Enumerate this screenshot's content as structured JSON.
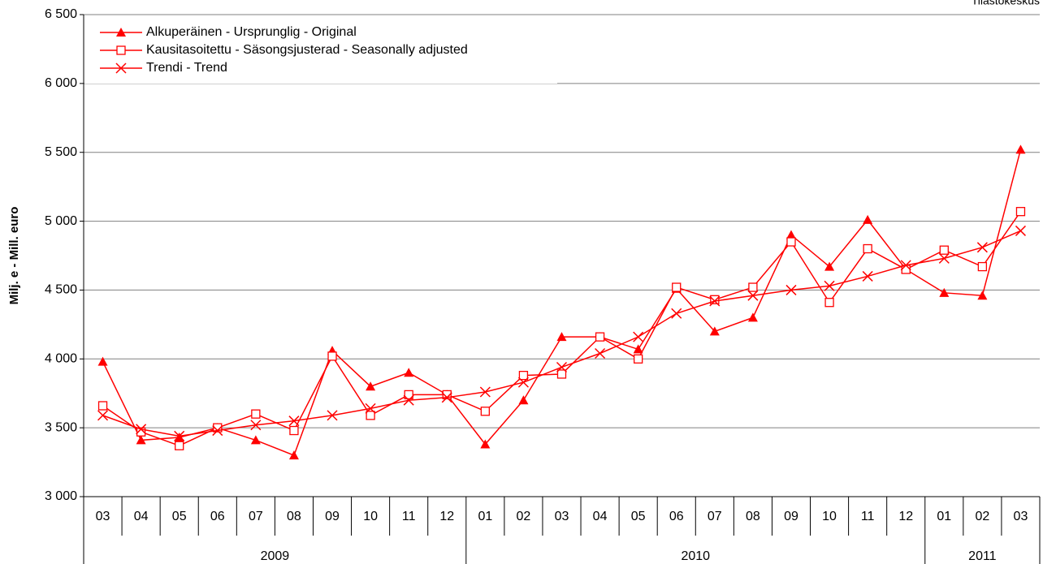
{
  "chart_data": {
    "type": "line",
    "source": "Tilastokeskus",
    "y_label": "Milj. e - Mill. euro",
    "categories": [
      "03",
      "04",
      "05",
      "06",
      "07",
      "08",
      "09",
      "10",
      "11",
      "12",
      "01",
      "02",
      "03",
      "04",
      "05",
      "06",
      "07",
      "08",
      "09",
      "10",
      "11",
      "12",
      "01",
      "02",
      "03"
    ],
    "years": [
      "2009",
      "2010",
      "2011"
    ],
    "series": [
      {
        "name": "Alkuperäinen - Ursprunglig - Original",
        "color": "#ff0000",
        "marker": "triangle",
        "values": [
          3980,
          3410,
          3430,
          3500,
          3410,
          3300,
          4060,
          3800,
          3900,
          3740,
          3380,
          3700,
          4160,
          4160,
          4070,
          4510,
          4200,
          4300,
          4900,
          4670,
          5010,
          4650,
          4480,
          4460,
          5520
        ]
      },
      {
        "name": "Kausitasoitettu - Säsongsjusterad - Seasonally adjusted",
        "color": "#ff0000",
        "marker": "square",
        "values": [
          3660,
          3470,
          3370,
          3500,
          3600,
          3480,
          4020,
          3590,
          3740,
          3740,
          3620,
          3880,
          3890,
          4160,
          4000,
          4520,
          4430,
          4520,
          4850,
          4410,
          4800,
          4650,
          4790,
          4670,
          5070
        ]
      },
      {
        "name": "Trendi - Trend",
        "color": "#ff0000",
        "marker": "cross",
        "values": [
          3590,
          3490,
          3440,
          3480,
          3520,
          3550,
          3590,
          3640,
          3700,
          3720,
          3760,
          3830,
          3940,
          4040,
          4160,
          4330,
          4420,
          4460,
          4500,
          4530,
          4600,
          4680,
          4730,
          4810,
          4930
        ]
      }
    ],
    "ylim": [
      3000,
      6500
    ],
    "yticks": [
      {
        "value": 3000,
        "label": "3 000"
      },
      {
        "value": 3500,
        "label": "3 500"
      },
      {
        "value": 4000,
        "label": "4 000"
      },
      {
        "value": 4500,
        "label": "4 500"
      },
      {
        "value": 5000,
        "label": "5 000"
      },
      {
        "value": 5500,
        "label": "5 500"
      },
      {
        "value": 6000,
        "label": "6 000"
      },
      {
        "value": 6500,
        "label": "6 500"
      }
    ],
    "grid": true,
    "legend": "upper left"
  }
}
